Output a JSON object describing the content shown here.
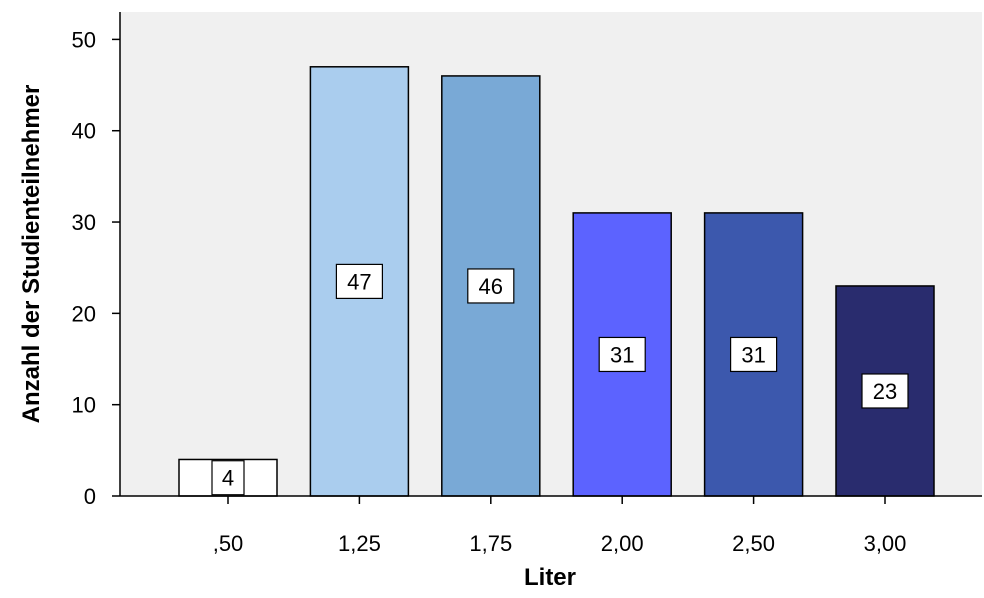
{
  "chart_data": {
    "type": "bar",
    "categories": [
      ",50",
      "1,25",
      "1,75",
      "2,00",
      "2,50",
      "3,00"
    ],
    "values": [
      4,
      47,
      46,
      31,
      31,
      23
    ],
    "data_labels": [
      "4",
      "47",
      "46",
      "31",
      "31",
      "23"
    ],
    "colors": [
      "#ffffff",
      "#aacdee",
      "#79a9d6",
      "#5c63ff",
      "#3c58ad",
      "#292c6e"
    ],
    "xlabel": "Liter",
    "ylabel": "Anzahl der Studienteilnehmer",
    "ylim": [
      0,
      53
    ],
    "yticks": [
      0,
      10,
      20,
      30,
      40,
      50
    ],
    "ytick_labels": [
      "0",
      "10",
      "20",
      "30",
      "40",
      "50"
    ],
    "plot_background": "#f0f0f0",
    "grid": false
  }
}
